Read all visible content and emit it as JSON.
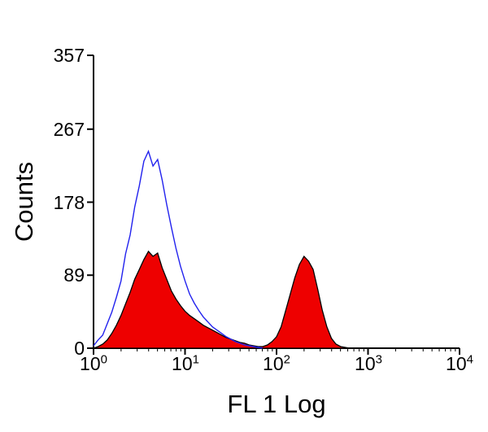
{
  "figure": {
    "background": "#ffffff",
    "axis_color": "#000000"
  },
  "chart_data": {
    "type": "area",
    "chart_kind": "flow-cytometry-overlay-histogram",
    "title": "",
    "xlabel": "FL 1 Log",
    "ylabel": "Counts",
    "x_scale": "log10",
    "x_log_range": [
      0,
      4
    ],
    "xlim": [
      1,
      10000
    ],
    "ylim": [
      0,
      357
    ],
    "y_ticks": [
      0,
      89,
      178,
      267,
      357
    ],
    "x_ticks": [
      {
        "base": "10",
        "exp": "0"
      },
      {
        "base": "10",
        "exp": "1"
      },
      {
        "base": "10",
        "exp": "2"
      },
      {
        "base": "10",
        "exp": "3"
      },
      {
        "base": "10",
        "exp": "4"
      }
    ],
    "grid": false,
    "legend": "none",
    "series": [
      {
        "name": "red-filled-histogram",
        "style": "filled",
        "fill": "#ee0000",
        "stroke": "#000000",
        "x_log_start": 0,
        "x_log_step": 0.05,
        "values": [
          0,
          2,
          5,
          10,
          18,
          28,
          40,
          54,
          68,
          84,
          96,
          108,
          118,
          112,
          116,
          98,
          84,
          70,
          60,
          52,
          45,
          40,
          36,
          32,
          28,
          25,
          22,
          19,
          16,
          13,
          11,
          9,
          7,
          6,
          4,
          3,
          2,
          2,
          4,
          8,
          14,
          26,
          46,
          66,
          86,
          102,
          112,
          106,
          96,
          72,
          46,
          26,
          12,
          5,
          2,
          1,
          0
        ]
      },
      {
        "name": "blue-open-histogram",
        "style": "line",
        "color": "#2222ee",
        "x_log_start": 0,
        "x_log_step": 0.05,
        "values": [
          3,
          10,
          16,
          30,
          44,
          62,
          82,
          115,
          138,
          172,
          198,
          228,
          240,
          222,
          230,
          205,
          175,
          148,
          122,
          100,
          82,
          66,
          55,
          46,
          38,
          32,
          26,
          22,
          18,
          14,
          11,
          8,
          6,
          4,
          3,
          2,
          1,
          0
        ]
      }
    ]
  }
}
